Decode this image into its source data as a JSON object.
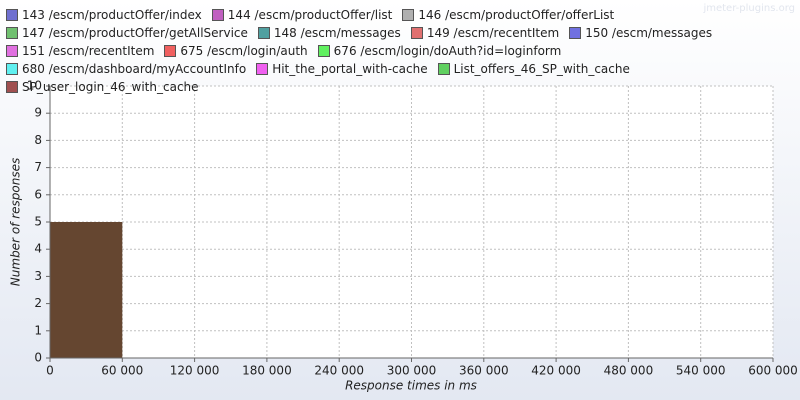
{
  "chart_data": {
    "type": "histogram",
    "watermark": "jmeter-plugins.org",
    "legend": [
      {
        "name": "143 /escm/productOffer/index",
        "color": "#7070d0"
      },
      {
        "name": "144 /escm/productOffer/list",
        "color": "#c060c0"
      },
      {
        "name": "146 /escm/productOffer/offerList",
        "color": "#b0b0b0"
      },
      {
        "name": "147 /escm/productOffer/getAllService",
        "color": "#70c070"
      },
      {
        "name": "148 /escm/messages",
        "color": "#50a0a0"
      },
      {
        "name": "149 /escm/recentItem",
        "color": "#e07070"
      },
      {
        "name": "150 /escm/messages",
        "color": "#7070e0"
      },
      {
        "name": "151 /escm/recentItem",
        "color": "#e070e0"
      },
      {
        "name": "675 /escm/login/auth",
        "color": "#f06060"
      },
      {
        "name": "676 /escm/login/doAuth?id=loginform",
        "color": "#60f060"
      },
      {
        "name": "680 /escm/dashboard/myAccountInfo",
        "color": "#60f0f0"
      },
      {
        "name": "Hit_the_portal_with-cache",
        "color": "#f060f0"
      },
      {
        "name": "List_offers_46_SP_with_cache",
        "color": "#60d060"
      },
      {
        "name": "SP_user_login_46_with_cache",
        "color": "#a05050"
      }
    ],
    "bins": [
      0,
      60000
    ],
    "counts": [
      5
    ],
    "bar_color": "#654630",
    "xlabel": "Response times in ms",
    "ylabel": "Number of responses",
    "xlim": [
      0,
      600000
    ],
    "xticks": [
      0,
      {
        "value": 60000,
        "label": "60 000"
      },
      {
        "value": 120000,
        "label": "120 000"
      },
      {
        "value": 180000,
        "label": "180 000"
      },
      {
        "value": 240000,
        "label": "240 000"
      },
      {
        "value": 300000,
        "label": "300 000"
      },
      {
        "value": 360000,
        "label": "360 000"
      },
      {
        "value": 420000,
        "label": "420 000"
      },
      {
        "value": 480000,
        "label": "480 000"
      },
      {
        "value": 540000,
        "label": "540 000"
      },
      {
        "value": 600000,
        "label": "600 000"
      }
    ],
    "ylim": [
      0,
      10
    ],
    "yticks": [
      0,
      1,
      2,
      3,
      4,
      5,
      6,
      7,
      8,
      9,
      10
    ],
    "grid": true
  }
}
